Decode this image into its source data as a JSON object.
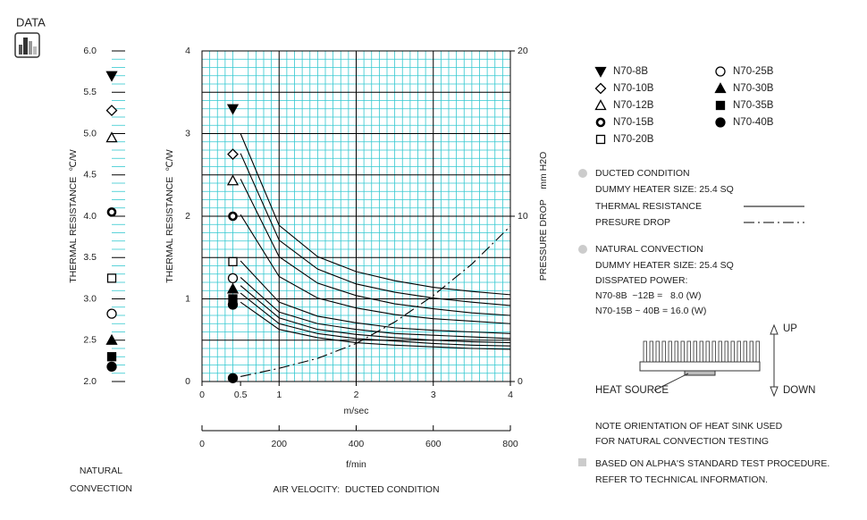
{
  "header": {
    "title": "DATA"
  },
  "chart_data": [
    {
      "type": "strip",
      "ylabel": "THERMAL RESISTANCE  ℃/W",
      "xlabel_lines": [
        "NATURAL",
        "CONVECTION"
      ],
      "ylim": [
        2,
        6
      ],
      "yticks": [
        {
          "value": 2,
          "label": "2.0"
        },
        2.5,
        {
          "value": 3,
          "label": "3.0"
        },
        3.5,
        {
          "value": 4,
          "label": "4.0"
        },
        4.5,
        {
          "value": 5,
          "label": "5.0"
        },
        5.5,
        {
          "value": 6,
          "label": "6.0"
        }
      ],
      "values": [
        5.7,
        5.28,
        4.95,
        4.05,
        3.25,
        2.82,
        2.5,
        2.3,
        2.18
      ],
      "grid": true
    },
    {
      "type": "line",
      "xlabel": "m/sec",
      "ylabel": "THERMAL RESISTANCE  ℃/W",
      "y2label": "PRESSURE DROP    mm H2O",
      "x2label": "f/min",
      "caption": "AIR VELOCITY:  DUCTED CONDITION",
      "xlim": [
        0,
        4
      ],
      "xticks": [
        0,
        0.5,
        1,
        2,
        3,
        4
      ],
      "x2lim": [
        0,
        800
      ],
      "x2ticks": [
        0,
        200,
        400,
        600,
        800
      ],
      "ylim": [
        0,
        4
      ],
      "yticks": [
        0,
        1,
        2,
        3,
        4
      ],
      "y2lim": [
        0,
        20
      ],
      "y2ticks": [
        0,
        10,
        20
      ],
      "grid": true,
      "color": "#000000",
      "grid_color": "#33c8d0",
      "marker_x": 0.4,
      "x": [
        0.5,
        1,
        1.5,
        2,
        2.5,
        3,
        3.5,
        4
      ],
      "series": [
        {
          "name": "N70-8B",
          "marker": "triangle-down-filled",
          "marker_value": 3.3,
          "values": [
            3.0,
            1.89,
            1.51,
            1.33,
            1.22,
            1.14,
            1.09,
            1.05
          ]
        },
        {
          "name": "N70-10B",
          "marker": "diamond-open",
          "marker_value": 2.75,
          "values": [
            2.76,
            1.71,
            1.36,
            1.18,
            1.08,
            1.01,
            0.96,
            0.92
          ]
        },
        {
          "name": "N70-12B",
          "marker": "triangle-open",
          "marker_value": 2.43,
          "values": [
            2.45,
            1.51,
            1.19,
            1.04,
            0.94,
            0.88,
            0.83,
            0.8
          ]
        },
        {
          "name": "N70-15B",
          "marker": "ring-bold",
          "marker_value": 2.0,
          "values": [
            2.02,
            1.27,
            1.01,
            0.89,
            0.81,
            0.76,
            0.73,
            0.7
          ]
        },
        {
          "name": "N70-20B",
          "marker": "square-open",
          "marker_value": 1.45,
          "values": [
            1.46,
            0.96,
            0.79,
            0.71,
            0.65,
            0.62,
            0.6,
            0.58
          ]
        },
        {
          "name": "N70-25B",
          "marker": "circle-open",
          "marker_value": 1.25,
          "values": [
            1.26,
            0.84,
            0.7,
            0.63,
            0.58,
            0.56,
            0.54,
            0.52
          ]
        },
        {
          "name": "N70-30B",
          "marker": "triangle-filled",
          "marker_value": 1.12,
          "values": [
            1.16,
            0.77,
            0.63,
            0.57,
            0.53,
            0.5,
            0.48,
            0.47
          ]
        },
        {
          "name": "N70-35B",
          "marker": "square-filled",
          "marker_value": 1.0,
          "values": [
            1.07,
            0.7,
            0.58,
            0.52,
            0.49,
            0.46,
            0.44,
            0.43
          ]
        },
        {
          "name": "N70-40B",
          "marker": "circle-filled",
          "marker_value": 0.93,
          "values": [
            0.96,
            0.63,
            0.53,
            0.47,
            0.44,
            0.42,
            0.4,
            0.39
          ]
        },
        {
          "axis": "y2",
          "dash": "dash-dot",
          "marker": "circle-filled",
          "marker_value": 0.2,
          "values": [
            0.3,
            0.8,
            1.4,
            2.3,
            3.6,
            5.2,
            7.1,
            9.4
          ]
        }
      ]
    }
  ],
  "notes": {
    "ducted": {
      "title": "DUCTED CONDITION",
      "heater": "DUMMY HEATER SIZE: 25.4 SQ",
      "thermal": "THERMAL RESISTANCE",
      "pressure": "PRESURE DROP"
    },
    "natural": {
      "title": "NATURAL CONVECTION",
      "heater": "DUMMY HEATER SIZE: 25.4 SQ",
      "power": "DISSPATED POWER:",
      "lines": [
        "N70-8B  ~12B =   8.0 (W)",
        "N70-15B ~ 40B = 16.0 (W)"
      ]
    },
    "diagram": {
      "heat_source": "HEAT SOURCE",
      "up": "UP",
      "down": "DOWN"
    },
    "orientation": [
      "NOTE ORIENTATION OF HEAT SINK USED",
      "FOR NATURAL CONVECTION TESTING"
    ],
    "procedure": [
      "BASED ON ALPHA'S STANDARD TEST PROCEDURE.",
      "REFER TO TECHNICAL INFORMATION."
    ]
  }
}
